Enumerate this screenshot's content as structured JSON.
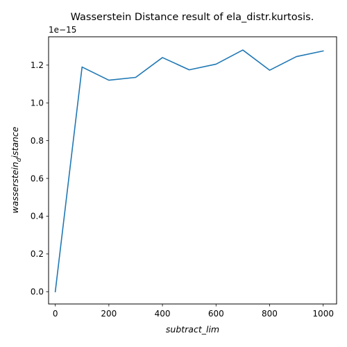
{
  "chart_data": {
    "type": "line",
    "title": "Wasserstein Distance result of ela_distr.kurtosis.",
    "xlabel": "subtract_lim",
    "ylabel_main": "wasserstein",
    "ylabel_sub": "d",
    "ylabel_rest": "istance",
    "y_offset_label": "1e−15",
    "xlim": [
      -25,
      1050
    ],
    "ylim": [
      -0.065,
      1.35
    ],
    "x_ticks": [
      0,
      200,
      400,
      600,
      800,
      1000
    ],
    "x_tick_labels": [
      "0",
      "200",
      "400",
      "600",
      "800",
      "1000"
    ],
    "y_ticks": [
      0.0,
      0.2,
      0.4,
      0.6,
      0.8,
      1.0,
      1.2
    ],
    "y_tick_labels": [
      "0.0",
      "0.2",
      "0.4",
      "0.6",
      "0.8",
      "1.0",
      "1.2"
    ],
    "grid": false,
    "series": [
      {
        "color": "#1f77b4",
        "x": [
          0,
          100,
          200,
          300,
          400,
          500,
          600,
          700,
          800,
          900,
          1000
        ],
        "y": [
          0.0,
          1.19,
          1.12,
          1.135,
          1.24,
          1.175,
          1.205,
          1.28,
          1.173,
          1.245,
          1.275
        ]
      }
    ]
  }
}
